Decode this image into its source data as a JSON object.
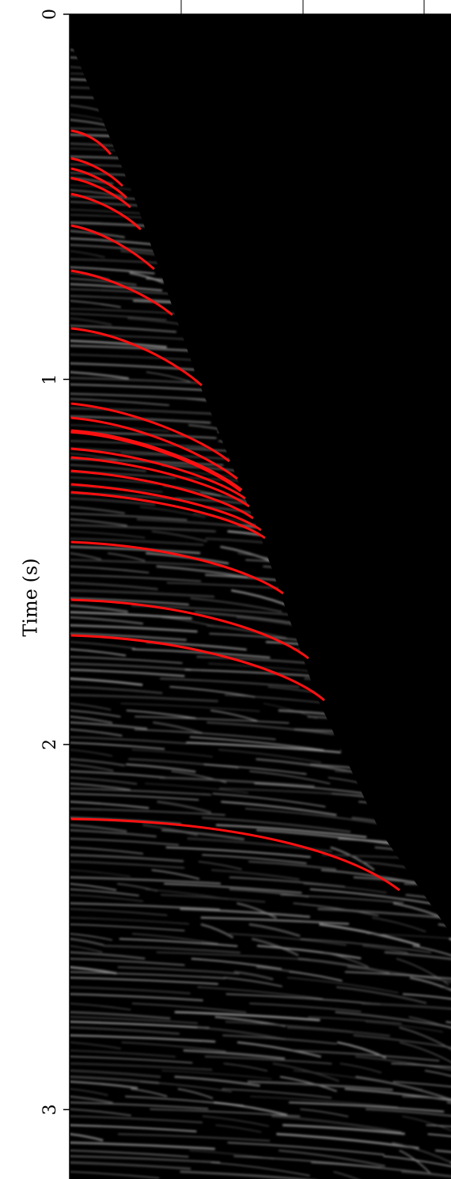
{
  "chart_data": {
    "type": "image",
    "ylabel": "Time (s)",
    "ylim": [
      0,
      3.19
    ],
    "yticks": [
      0,
      1,
      2,
      3
    ]
  }
}
